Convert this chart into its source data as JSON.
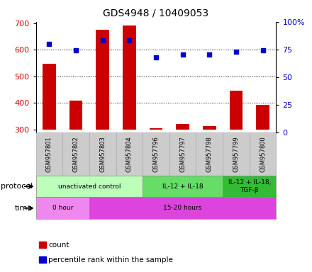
{
  "title": "GDS4948 / 10409053",
  "samples": [
    "GSM957801",
    "GSM957802",
    "GSM957803",
    "GSM957804",
    "GSM957796",
    "GSM957797",
    "GSM957798",
    "GSM957799",
    "GSM957800"
  ],
  "counts": [
    548,
    408,
    675,
    690,
    305,
    320,
    313,
    447,
    393
  ],
  "percentile_ranks": [
    80,
    74,
    83,
    83,
    68,
    70,
    70,
    73,
    74
  ],
  "ylim_left": [
    290,
    705
  ],
  "ylim_right": [
    0,
    100
  ],
  "yticks_left": [
    300,
    400,
    500,
    600,
    700
  ],
  "yticks_right": [
    0,
    25,
    50,
    75,
    100
  ],
  "ytick_labels_right": [
    "0",
    "25",
    "50",
    "75",
    "100%"
  ],
  "grid_values": [
    400,
    500,
    600
  ],
  "bar_color": "#cc0000",
  "dot_color": "#0000cc",
  "bar_bottom": 300,
  "protocol_groups": [
    {
      "label": "unactivated control",
      "start": 0,
      "end": 4,
      "color": "#bbffbb"
    },
    {
      "label": "IL-12 + IL-18",
      "start": 4,
      "end": 7,
      "color": "#66dd66"
    },
    {
      "label": "IL-12 + IL-18,\nTGF-β",
      "start": 7,
      "end": 9,
      "color": "#33bb33"
    }
  ],
  "time_groups": [
    {
      "label": "0 hour",
      "start": 0,
      "end": 2,
      "color": "#ee88ee"
    },
    {
      "label": "15-20 hours",
      "start": 2,
      "end": 9,
      "color": "#dd44dd"
    }
  ],
  "protocol_label": "protocol",
  "time_label": "time",
  "legend_count": "count",
  "legend_pct": "percentile rank within the sample",
  "bar_color_red": "#cc0000",
  "dot_color_blue": "#0000cc",
  "sample_box_color": "#cccccc",
  "sample_box_edge": "#aaaaaa"
}
